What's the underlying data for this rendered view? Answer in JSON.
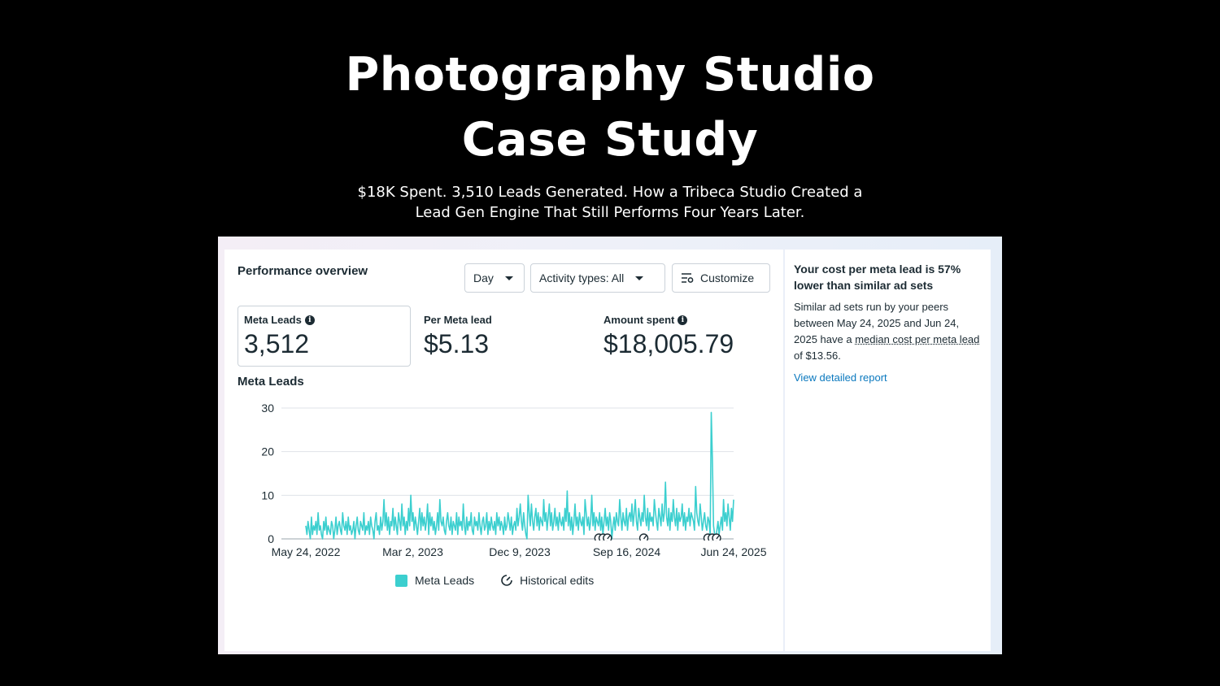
{
  "hero": {
    "title_line1": "Photography Studio",
    "title_line2": "Case Study",
    "subtitle_line1": "$18K Spent. 3,510 Leads Generated. How a Tribeca Studio Created a",
    "subtitle_line2": "Lead Gen Engine That Still Performs Four Years Later."
  },
  "panel": {
    "title": "Performance overview",
    "controls": {
      "day_label": "Day",
      "activity_label": "Activity types: All",
      "customize_label": "Customize"
    },
    "metrics": [
      {
        "label": "Meta Leads",
        "value": "3,512"
      },
      {
        "label": "Per Meta lead",
        "value": "$5.13"
      },
      {
        "label": "Amount spent",
        "value": "$18,005.79"
      }
    ],
    "chart_title": "Meta Leads",
    "legend": {
      "series_label": "Meta Leads",
      "edits_label": "Historical edits"
    }
  },
  "side": {
    "heading": "Your cost per meta lead is 57% lower than similar ad sets",
    "body_prefix": "Similar ad sets run by your peers between May 24, 2025 and Jun 24, 2025 have a ",
    "body_term": "median cost per meta lead",
    "body_suffix": " of $13.56.",
    "link": "View detailed report"
  },
  "colors": {
    "series": "#3ccfcf",
    "link": "#0a78be",
    "text": "#1c2b33"
  },
  "icons": [
    "info-icon",
    "caret-down-icon",
    "customize-icon",
    "historical-edit-icon"
  ],
  "chart_data": {
    "type": "line",
    "title": "Meta Leads",
    "xlabel": "",
    "ylabel": "",
    "ylim": [
      0,
      30
    ],
    "yticks": [
      0,
      10,
      20,
      30
    ],
    "xtick_labels": [
      "May 24, 2022",
      "Mar 2, 2023",
      "Dec 9, 2023",
      "Sep 16, 2024",
      "Jun 24, 2025"
    ],
    "x_start": "2022-05-24",
    "x_end": "2025-06-24",
    "series": [
      {
        "name": "Meta Leads",
        "color": "#3ccfcf",
        "daily_values": [
          3,
          1,
          4,
          2,
          0,
          5,
          1,
          3,
          2,
          4,
          1,
          6,
          2,
          3,
          1,
          0,
          4,
          2,
          5,
          1,
          3,
          2,
          1,
          4,
          3,
          0,
          2,
          5,
          1,
          3,
          4,
          2,
          1,
          6,
          3,
          2,
          4,
          1,
          5,
          2,
          3,
          1,
          2,
          4,
          0,
          3,
          5,
          2,
          1,
          4,
          3,
          2,
          6,
          1,
          3,
          2,
          4,
          1,
          5,
          3,
          2,
          0,
          4,
          6,
          2,
          3,
          1,
          5,
          2,
          4,
          9,
          3,
          6,
          2,
          5,
          1,
          4,
          3,
          7,
          2,
          5,
          3,
          1,
          6,
          4,
          2,
          8,
          3,
          5,
          1,
          4,
          2,
          7,
          3,
          10,
          4,
          6,
          2,
          5,
          3,
          1,
          4,
          7,
          2,
          6,
          3,
          5,
          2,
          4,
          8,
          1,
          6,
          3,
          5,
          2,
          4,
          1,
          3,
          6,
          2,
          9,
          4,
          3,
          5,
          2,
          1,
          4,
          6,
          3,
          2,
          5,
          1,
          4,
          3,
          2,
          6,
          1,
          5,
          3,
          4,
          2,
          8,
          3,
          1,
          5,
          2,
          4,
          3,
          6,
          2,
          1,
          5,
          3,
          4,
          2,
          6,
          3,
          1,
          4,
          5,
          2,
          3,
          6,
          1,
          4,
          2,
          5,
          3,
          2,
          4,
          1,
          6,
          3,
          5,
          2,
          4,
          3,
          1,
          5,
          2,
          3,
          6,
          4,
          2,
          5,
          1,
          3,
          4,
          2,
          7,
          3,
          5,
          8,
          4,
          2,
          6,
          3,
          1,
          0,
          10,
          6,
          3,
          8,
          4,
          2,
          5,
          7,
          3,
          6,
          2,
          5,
          4,
          3,
          9,
          4,
          6,
          2,
          5,
          8,
          3,
          6,
          2,
          4,
          7,
          3,
          5,
          2,
          6,
          4,
          3,
          5,
          2,
          7,
          4,
          11,
          3,
          6,
          2,
          5,
          1,
          4,
          8,
          3,
          5,
          2,
          6,
          4,
          3,
          5,
          1,
          9,
          6,
          3,
          5,
          2,
          4,
          10,
          3,
          6,
          2,
          5,
          4,
          3,
          6,
          2,
          5,
          1,
          4,
          7,
          3,
          5,
          2,
          6,
          4,
          0,
          3,
          5,
          2,
          6,
          4,
          3,
          9,
          5,
          2,
          6,
          4,
          3,
          7,
          2,
          5,
          6,
          4,
          8,
          3,
          6,
          9,
          4,
          2,
          7,
          5,
          3,
          6,
          4,
          10,
          5,
          3,
          7,
          2,
          6,
          4,
          5,
          3,
          9,
          6,
          4,
          2,
          7,
          5,
          3,
          8,
          4,
          6,
          13,
          5,
          3,
          7,
          2,
          6,
          4,
          9,
          5,
          3,
          7,
          2,
          6,
          4,
          5,
          8,
          3,
          6,
          2,
          5,
          4,
          7,
          3,
          6,
          5,
          4,
          2,
          12,
          6,
          4,
          3,
          8,
          5,
          2,
          4,
          6,
          3,
          2,
          5,
          4,
          1,
          29,
          18,
          3,
          1,
          0,
          2,
          4,
          1,
          3,
          5,
          2,
          9,
          4,
          6,
          3,
          8,
          5,
          2,
          7,
          4,
          9
        ]
      }
    ],
    "historical_edit_markers": [
      "Sep 2024 (x3)",
      "Nov 2024",
      "Jun 2025 (x3)"
    ],
    "legend": [
      "Meta Leads",
      "Historical edits"
    ],
    "grid": true,
    "legend_position": "bottom"
  }
}
